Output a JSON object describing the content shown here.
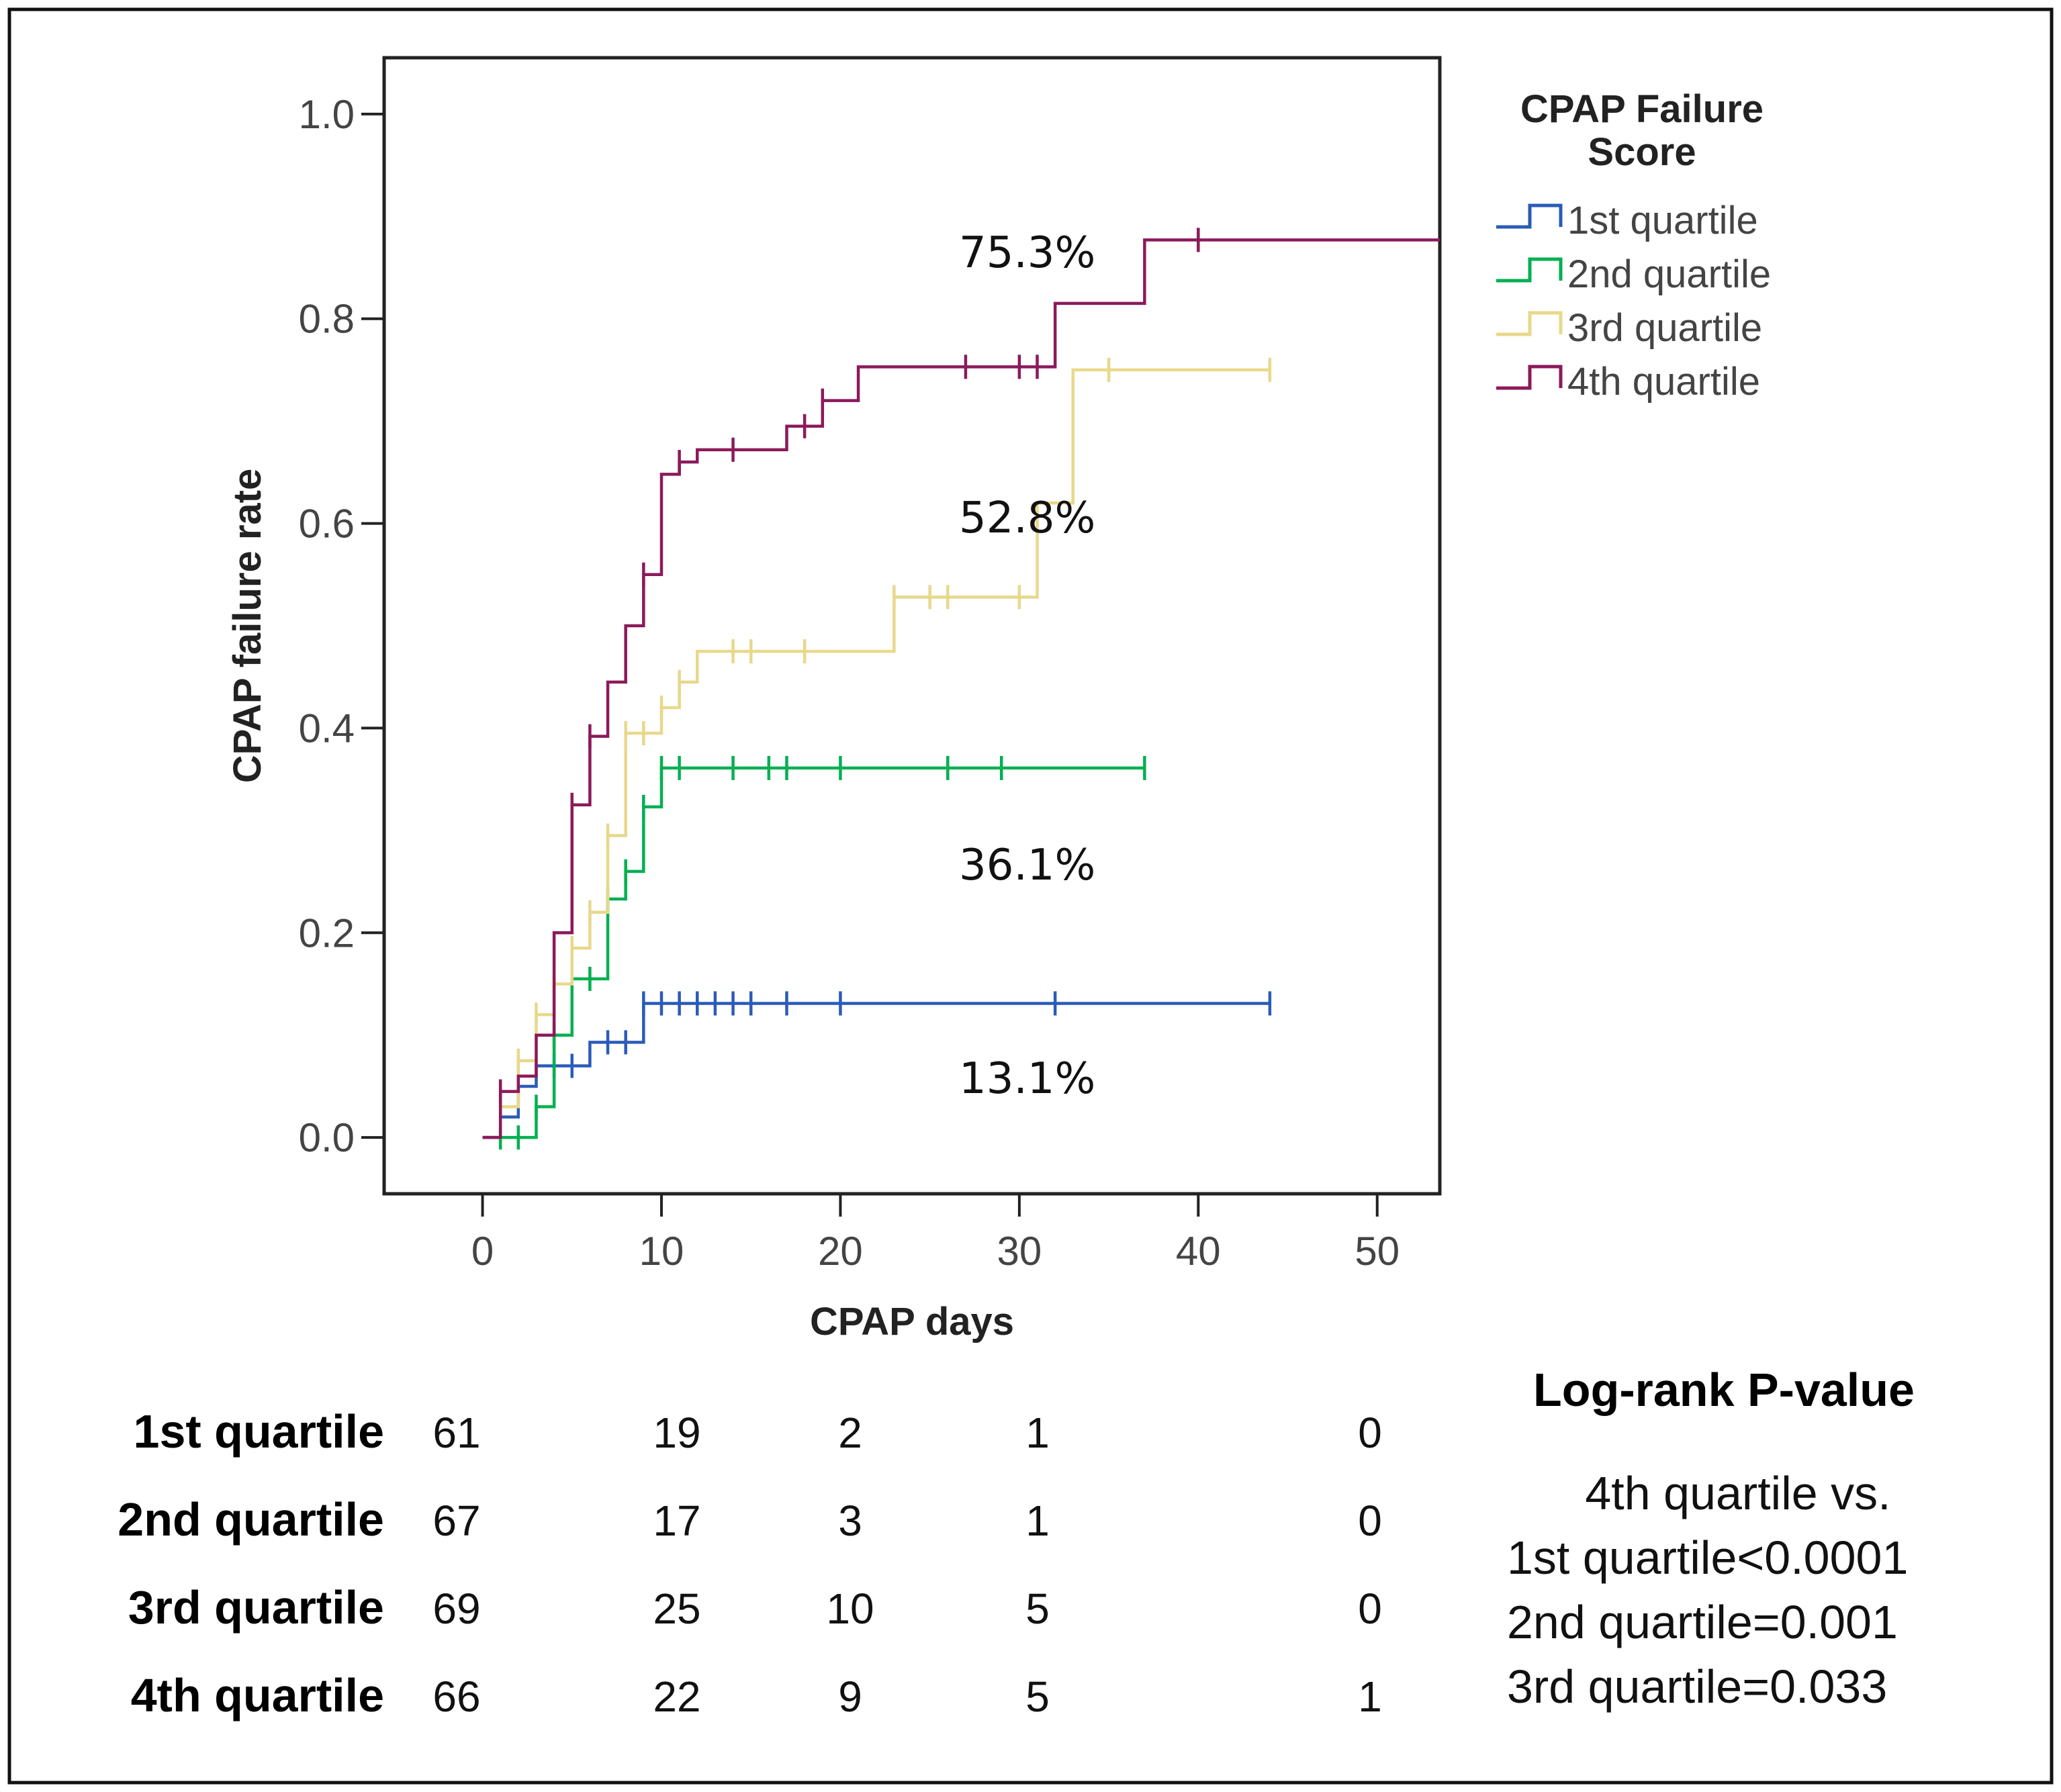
{
  "chart_data": {
    "type": "line",
    "subtype": "kaplan-meier cumulative incidence (step)",
    "xlabel": "CPAP days",
    "ylabel": "CPAP failure rate",
    "xlim": [
      -5.5,
      53.5
    ],
    "ylim": [
      -0.055,
      1.055
    ],
    "x_ticks": [
      0,
      10,
      20,
      30,
      40,
      50
    ],
    "y_ticks": [
      0.0,
      0.2,
      0.4,
      0.6,
      0.8,
      1.0
    ],
    "x_tick_labels": [
      "0",
      "10",
      "20",
      "30",
      "40",
      "50"
    ],
    "y_tick_labels": [
      "0.0",
      "0.2",
      "0.4",
      "0.6",
      "0.8",
      "1.0"
    ],
    "legend": {
      "title_line1": "CPAP Failure",
      "title_line2": "Score",
      "position": "top-right, outside plot"
    },
    "series": [
      {
        "name": "1st quartile",
        "color": "#2a5bb8",
        "steps": [
          [
            0,
            0
          ],
          [
            1,
            0.02
          ],
          [
            2,
            0.05
          ],
          [
            3,
            0.07
          ],
          [
            6,
            0.093
          ],
          [
            9,
            0.131
          ],
          [
            44,
            0.131
          ]
        ],
        "censor_x": [
          2,
          4,
          5,
          7,
          8,
          9,
          10,
          11,
          12,
          13,
          14,
          15,
          17,
          20,
          32,
          44
        ],
        "end_label": "13.1%"
      },
      {
        "name": "2nd quartile",
        "color": "#00b050",
        "steps": [
          [
            0,
            0
          ],
          [
            1,
            0
          ],
          [
            3,
            0.03
          ],
          [
            4,
            0.1
          ],
          [
            5,
            0.155
          ],
          [
            7,
            0.233
          ],
          [
            8,
            0.26
          ],
          [
            9,
            0.323
          ],
          [
            10,
            0.361
          ],
          [
            37,
            0.361
          ]
        ],
        "censor_x": [
          1,
          2,
          3,
          4,
          5,
          6,
          7,
          8,
          9,
          10,
          11,
          14,
          16,
          17,
          20,
          26,
          29,
          37
        ],
        "end_label": "36.1%"
      },
      {
        "name": "3rd quartile",
        "color": "#e8d88a",
        "steps": [
          [
            0,
            0
          ],
          [
            1,
            0.03
          ],
          [
            2,
            0.075
          ],
          [
            3,
            0.12
          ],
          [
            4,
            0.15
          ],
          [
            5,
            0.185
          ],
          [
            6,
            0.22
          ],
          [
            7,
            0.295
          ],
          [
            8,
            0.395
          ],
          [
            10,
            0.42
          ],
          [
            11,
            0.445
          ],
          [
            12,
            0.475
          ],
          [
            23,
            0.528
          ],
          [
            31,
            0.62
          ],
          [
            33,
            0.75
          ],
          [
            44,
            0.75
          ]
        ],
        "censor_x": [
          1,
          2,
          3,
          4,
          5,
          6,
          7,
          8,
          9,
          10,
          11,
          14,
          15,
          18,
          23,
          25,
          26,
          30,
          35,
          44
        ],
        "end_label": "52.8%"
      },
      {
        "name": "4th quartile",
        "color": "#8b1a5a",
        "steps": [
          [
            0,
            0
          ],
          [
            1,
            0.045
          ],
          [
            2,
            0.06
          ],
          [
            3,
            0.1
          ],
          [
            4,
            0.2
          ],
          [
            5,
            0.325
          ],
          [
            6,
            0.392
          ],
          [
            7,
            0.445
          ],
          [
            8,
            0.5
          ],
          [
            9,
            0.55
          ],
          [
            10,
            0.648
          ],
          [
            11,
            0.66
          ],
          [
            12,
            0.672
          ],
          [
            17,
            0.695
          ],
          [
            19,
            0.72
          ],
          [
            21,
            0.753
          ],
          [
            32,
            0.815
          ],
          [
            37,
            0.877
          ],
          [
            53.5,
            0.877
          ]
        ],
        "censor_x": [
          1,
          5,
          6,
          9,
          11,
          14,
          18,
          19,
          27,
          30,
          31,
          40
        ],
        "end_label": "75.3%"
      }
    ],
    "annotations": [
      "75.3%",
      "52.8%",
      "36.1%",
      "13.1%"
    ]
  },
  "risk_table": {
    "rows": [
      {
        "label": "1st quartile",
        "values": [
          "61",
          "19",
          "2",
          "1",
          "0"
        ]
      },
      {
        "label": "2nd quartile",
        "values": [
          "67",
          "17",
          "3",
          "1",
          "0"
        ]
      },
      {
        "label": "3rd quartile",
        "values": [
          "69",
          "25",
          "10",
          "5",
          "0"
        ]
      },
      {
        "label": "4th quartile",
        "values": [
          "66",
          "22",
          "9",
          "5",
          "1"
        ]
      }
    ]
  },
  "log_rank": {
    "title": "Log-rank P-value",
    "lines": [
      "4th quartile vs.",
      "1st quartile<0.0001",
      "2nd quartile=0.001",
      "3rd quartile=0.033"
    ]
  }
}
